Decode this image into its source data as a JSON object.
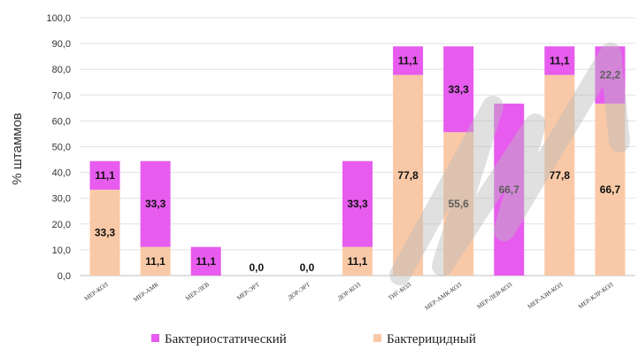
{
  "chart_data": {
    "type": "bar",
    "stacked": true,
    "categories": [
      "МЕР-КОЛ",
      "МЕР-АМК",
      "МЕР-ЛЕВ",
      "МЕР-ЭРТ",
      "ДОР-ЭРТ",
      "ДОР-КОЛ",
      "ТИГ-КОЛ",
      "МЕР-АМК-КОЛ",
      "МЕР-ЛЕВ-КОЛ",
      "МЕР-АЗИ-КОЛ",
      "МЕР-КЛР-КОЛ"
    ],
    "series": [
      {
        "name": "Бактерицидный",
        "color": "#f9c9a7",
        "values": [
          33.3,
          11.1,
          0,
          0,
          0,
          11.1,
          77.8,
          55.6,
          0,
          77.8,
          66.7
        ],
        "labels": [
          "33,3",
          "11,1",
          "",
          "0,0",
          "0,0",
          "11,1",
          "77,8",
          "55,6",
          "",
          "77,8",
          "66,7"
        ]
      },
      {
        "name": "Бактериостатический",
        "color": "#e75cee",
        "values": [
          11.1,
          33.3,
          11.1,
          0,
          0,
          33.3,
          11.1,
          33.3,
          66.7,
          11.1,
          22.2
        ],
        "labels": [
          "11,1",
          "33,3",
          "11,1",
          "",
          "",
          "33,3",
          "11,1",
          "33,3",
          "66,7",
          "11,1",
          "22,2"
        ]
      }
    ],
    "ylabel": "% штаммов",
    "ylim": [
      0,
      100
    ],
    "yticks": [
      "0,0",
      "10,0",
      "20,0",
      "30,0",
      "40,0",
      "50,0",
      "60,0",
      "70,0",
      "80,0",
      "90,0",
      "100,0"
    ],
    "grid": true,
    "legend": "bottom"
  }
}
